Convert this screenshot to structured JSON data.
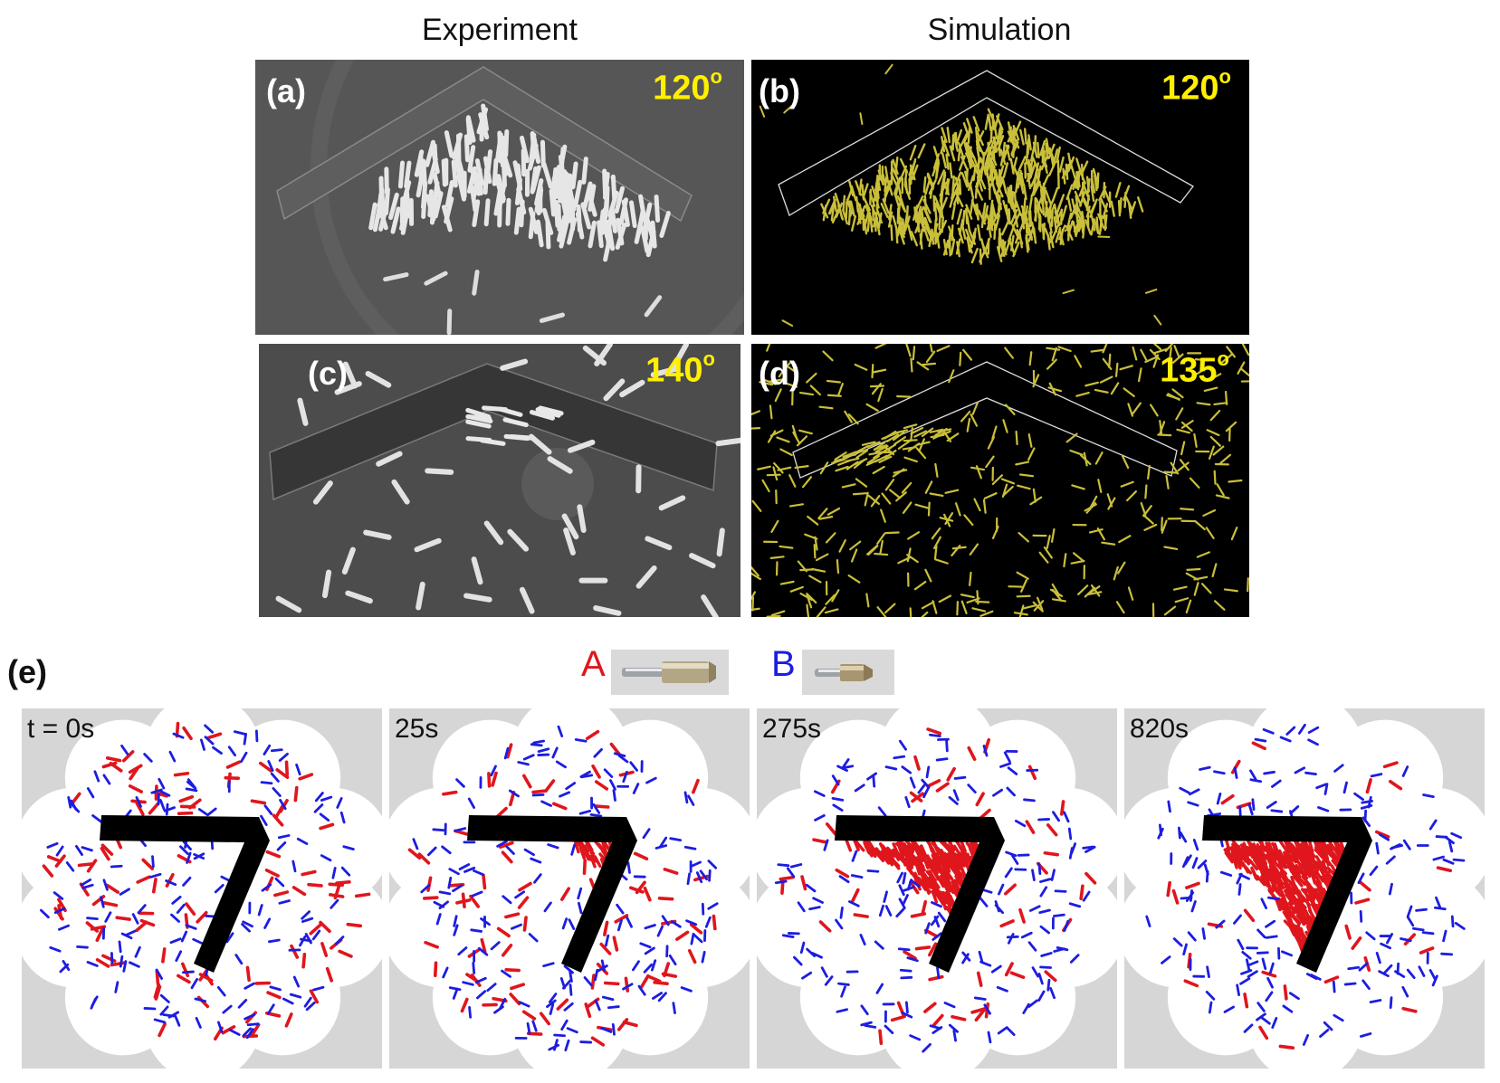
{
  "column_titles": {
    "experiment": "Experiment",
    "simulation": "Simulation"
  },
  "panels": [
    {
      "id": "a",
      "label": "(a)",
      "angle": "120",
      "degree": "o",
      "kind": "experiment"
    },
    {
      "id": "b",
      "label": "(b)",
      "angle": "120",
      "degree": "o",
      "kind": "simulation"
    },
    {
      "id": "c",
      "label": "(c)",
      "angle": "140",
      "degree": "o",
      "kind": "experiment"
    },
    {
      "id": "d",
      "label": "(d)",
      "angle": "135",
      "degree": "o",
      "kind": "simulation"
    }
  ],
  "panel_e": {
    "label": "(e)",
    "legend": [
      {
        "letter": "A",
        "color": "#e0161d"
      },
      {
        "letter": "B",
        "color": "#1d1de0"
      }
    ],
    "timepoints": [
      {
        "label": "t = 0s"
      },
      {
        "label": "25s"
      },
      {
        "label": "275s"
      },
      {
        "label": "820s"
      }
    ]
  },
  "colors": {
    "sim_rod": "#c9bf3a",
    "particle_A": "#e0161d",
    "particle_B": "#1d1de0",
    "angle_text": "#ffef00"
  }
}
